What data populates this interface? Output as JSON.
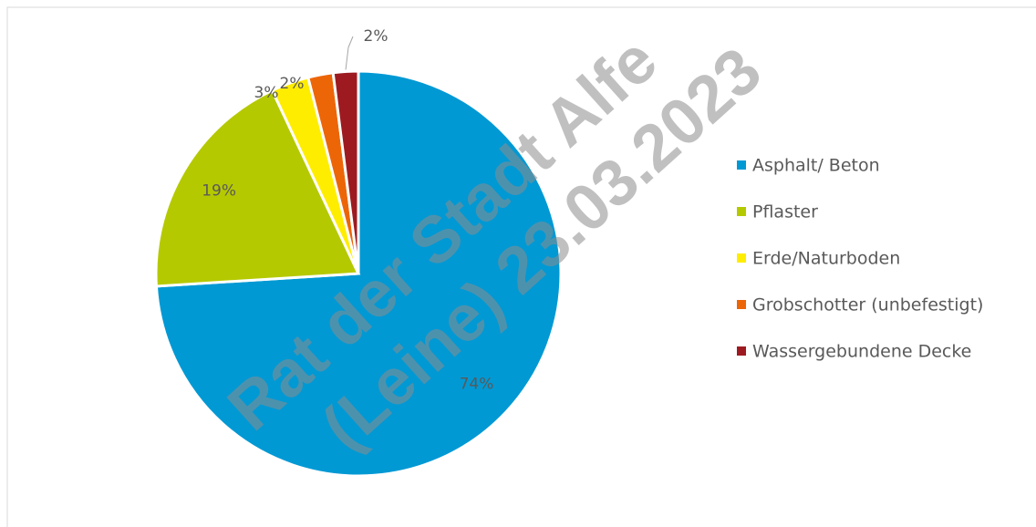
{
  "chart_data": {
    "type": "pie",
    "categories": [
      "Asphalt/ Beton",
      "Pflaster",
      "Erde/Naturboden",
      "Grobschotter (unbefestigt)",
      "Wassergebundene Decke"
    ],
    "values": [
      74,
      19,
      3,
      2,
      2
    ],
    "value_labels": [
      "74%",
      "19%",
      "3%",
      "2%",
      "2%"
    ],
    "colors": [
      "#0099d4",
      "#b5c900",
      "#ffed00",
      "#ec6608",
      "#9d1b20"
    ],
    "legend": "right",
    "annotations": [
      "Rat der Stadt Alfe",
      "(Leine) 23.03.2023"
    ]
  }
}
